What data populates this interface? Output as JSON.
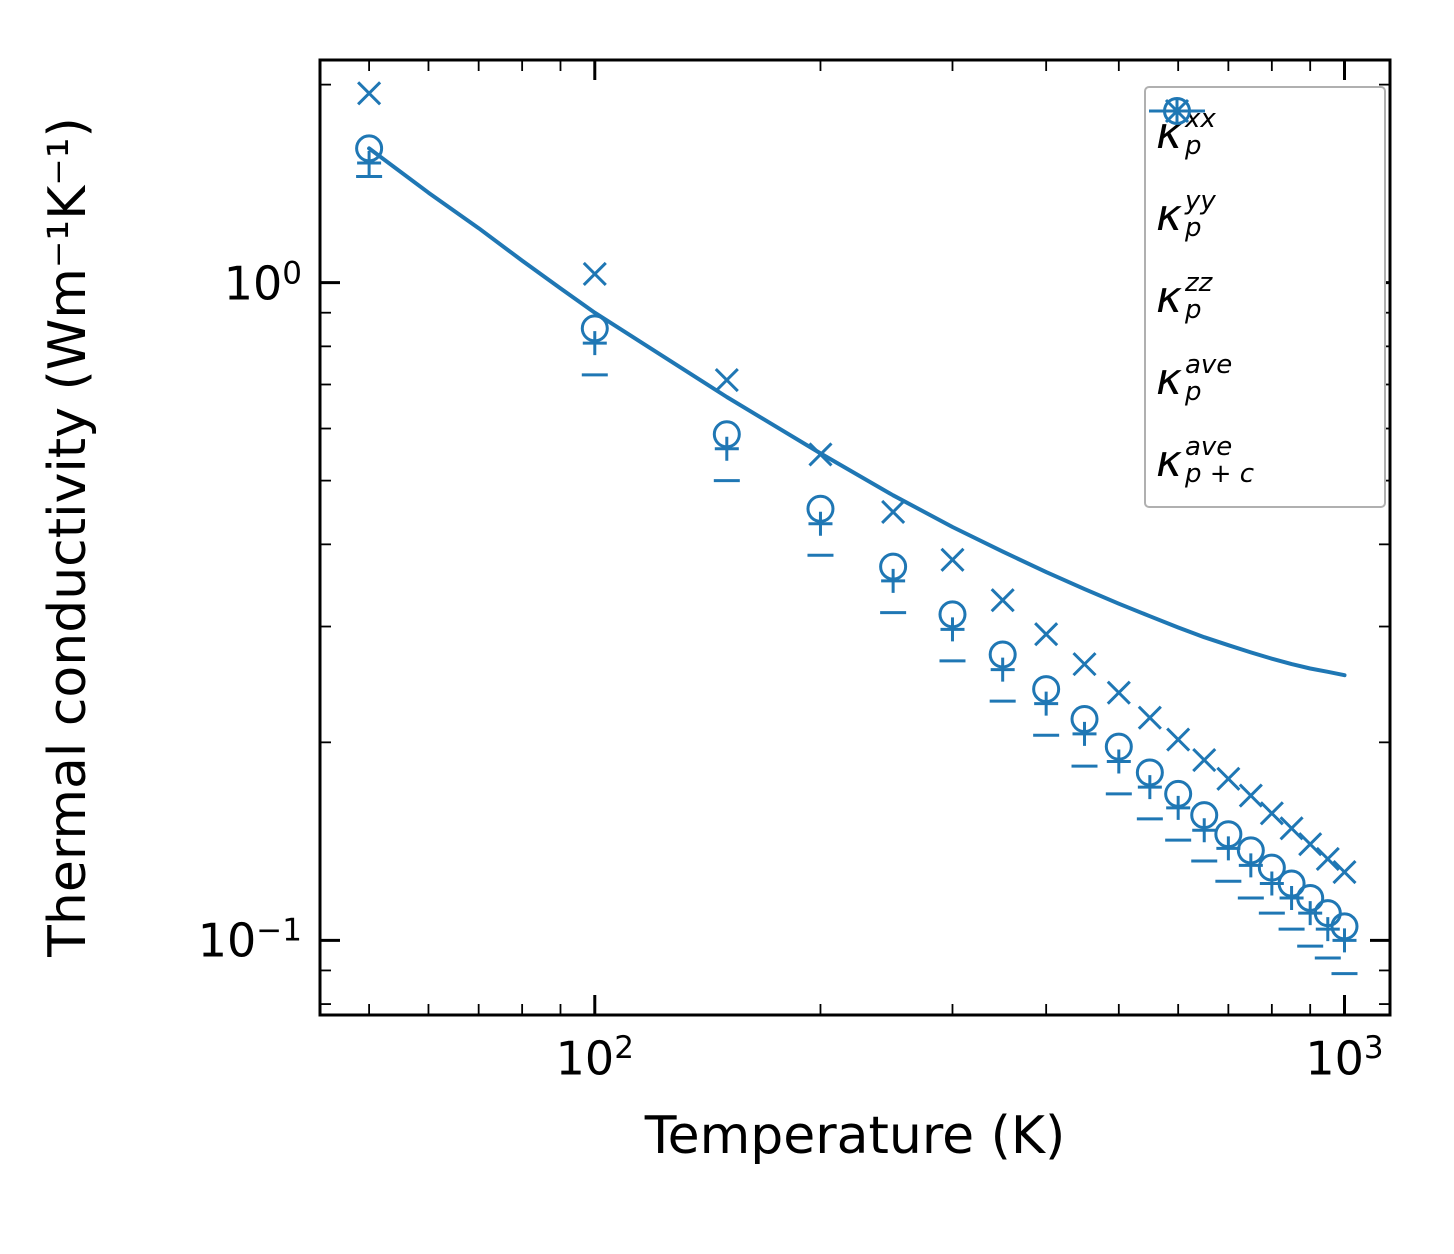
{
  "figure": {
    "background": "#ffffff"
  },
  "chart_data": {
    "type": "scatter",
    "color": "#1f77b4",
    "axis_color": "#000000",
    "legend_border_color": "#b0b0b0",
    "xlabel": "Temperature (K)",
    "ylabel": "Thermal conductivity (Wm⁻¹K⁻¹)",
    "xscale": "log",
    "yscale": "log",
    "xlim": [
      43,
      1150
    ],
    "ylim": [
      0.077,
      2.18
    ],
    "grid": false,
    "legend_position": "upper right",
    "x_major_ticks": [
      {
        "value": 100,
        "base": "10",
        "exp": "2"
      },
      {
        "value": 1000,
        "base": "10",
        "exp": "3"
      }
    ],
    "y_major_ticks": [
      {
        "value": 1,
        "base": "10",
        "exp": "0"
      },
      {
        "value": 0.1,
        "base": "10",
        "exp": "−1"
      }
    ],
    "temperatures": [
      50,
      100,
      150,
      200,
      250,
      300,
      350,
      400,
      450,
      500,
      550,
      600,
      650,
      700,
      750,
      800,
      850,
      900,
      950,
      1000
    ],
    "series": [
      {
        "name": "kappa_p_xx",
        "marker": "plus",
        "legend": {
          "base": "κ",
          "sup": "xx",
          "sub": "p"
        },
        "values": [
          1.52,
          0.809,
          0.559,
          0.43,
          0.352,
          0.297,
          0.258,
          0.229,
          0.206,
          0.187,
          0.171,
          0.159,
          0.147,
          0.138,
          0.13,
          0.122,
          0.116,
          0.11,
          0.104,
          0.1
        ]
      },
      {
        "name": "kappa_p_yy",
        "marker": "x",
        "legend": {
          "base": "κ",
          "sup": "yy",
          "sub": "p"
        },
        "values": [
          1.94,
          1.031,
          0.711,
          0.548,
          0.448,
          0.379,
          0.329,
          0.292,
          0.263,
          0.238,
          0.218,
          0.202,
          0.188,
          0.176,
          0.166,
          0.156,
          0.148,
          0.14,
          0.133,
          0.127
        ]
      },
      {
        "name": "kappa_p_zz",
        "marker": "minus",
        "legend": {
          "base": "κ",
          "sup": "zz",
          "sub": "p"
        },
        "values": [
          1.45,
          0.724,
          0.5,
          0.385,
          0.315,
          0.266,
          0.231,
          0.205,
          0.184,
          0.167,
          0.153,
          0.142,
          0.132,
          0.123,
          0.116,
          0.11,
          0.104,
          0.098,
          0.094,
          0.089
        ]
      },
      {
        "name": "kappa_p_ave",
        "marker": "circle",
        "legend": {
          "base": "κ",
          "sup": "ave",
          "sub": "p"
        },
        "values": [
          1.6,
          0.852,
          0.588,
          0.453,
          0.37,
          0.313,
          0.272,
          0.241,
          0.217,
          0.197,
          0.18,
          0.167,
          0.155,
          0.145,
          0.137,
          0.129,
          0.122,
          0.116,
          0.11,
          0.105
        ]
      }
    ],
    "line_series": {
      "name": "kappa_p_plus_c_ave",
      "marker": "line",
      "legend": {
        "base": "κ",
        "sup": "ave",
        "sub": "p + c"
      },
      "x": [
        50,
        60,
        70,
        80,
        90,
        100,
        150,
        200,
        250,
        300,
        350,
        400,
        450,
        500,
        550,
        600,
        650,
        700,
        750,
        800,
        850,
        900,
        950,
        1000
      ],
      "values": [
        1.6,
        1.37,
        1.21,
        1.08,
        0.98,
        0.9,
        0.67,
        0.55,
        0.475,
        0.425,
        0.39,
        0.363,
        0.342,
        0.325,
        0.311,
        0.299,
        0.289,
        0.281,
        0.274,
        0.268,
        0.263,
        0.259,
        0.256,
        0.253
      ]
    }
  }
}
